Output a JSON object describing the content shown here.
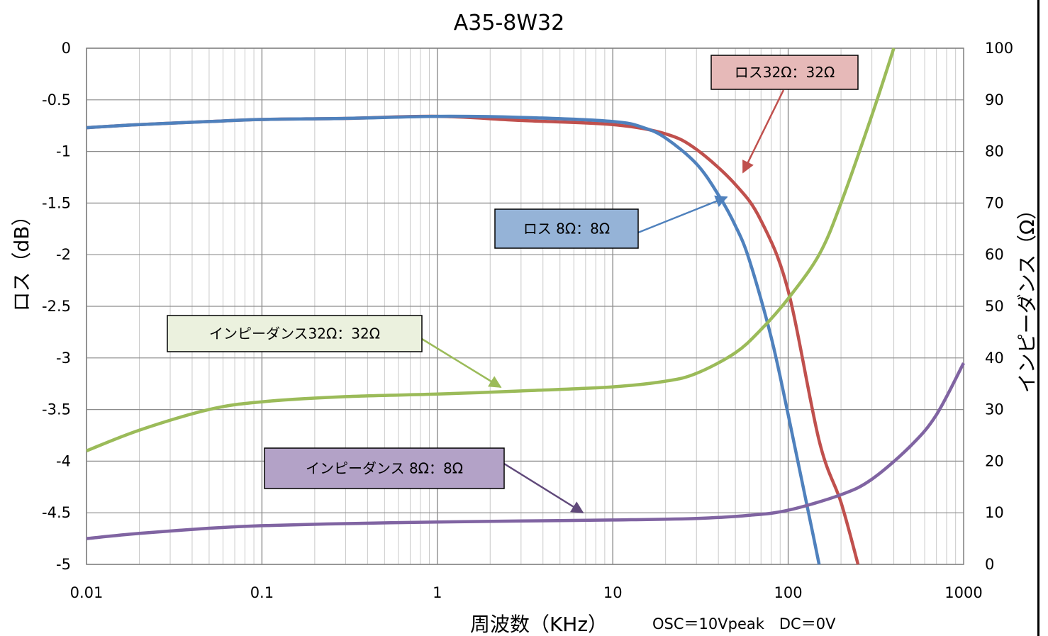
{
  "chart_data": {
    "type": "line",
    "title": "A35-8W32",
    "xlabel": "周波数（KHz）",
    "ylabel_left": "ロス（dB）",
    "ylabel_right": "インピーダンス（Ω）",
    "x_scale": "log",
    "xlim": [
      0.01,
      1000
    ],
    "ylim_left": [
      -5,
      0
    ],
    "ylim_right": [
      0,
      100
    ],
    "x_ticks": [
      "0.01",
      "0.1",
      "1",
      "10",
      "100",
      "1000"
    ],
    "y_left_ticks": [
      "0",
      "-0.5",
      "-1",
      "-1.5",
      "-2",
      "-2.5",
      "-3",
      "-3.5",
      "-4",
      "-4.5",
      "-5"
    ],
    "y_right_ticks": [
      "100",
      "90",
      "80",
      "70",
      "60",
      "50",
      "40",
      "30",
      "20",
      "10",
      "0"
    ],
    "grid": true,
    "note": "OSC＝10Vpeak　DC＝0V",
    "series": [
      {
        "name": "ロス32Ω：32Ω",
        "axis": "left",
        "color": "#c0504d",
        "x": [
          0.01,
          0.02,
          0.05,
          0.1,
          0.3,
          1,
          3,
          10,
          20,
          30,
          50,
          70,
          100,
          150,
          200,
          250
        ],
        "y": [
          -0.77,
          -0.74,
          -0.71,
          -0.69,
          -0.68,
          -0.66,
          -0.7,
          -0.74,
          -0.83,
          -0.98,
          -1.32,
          -1.67,
          -2.35,
          -3.8,
          -4.4,
          -5.0
        ]
      },
      {
        "name": "ロス 8Ω：8Ω",
        "axis": "left",
        "color": "#4f81bd",
        "x": [
          0.01,
          0.02,
          0.05,
          0.1,
          0.3,
          1,
          3,
          10,
          15,
          20,
          30,
          40,
          50,
          60,
          80,
          100,
          120,
          140,
          150
        ],
        "y": [
          -0.77,
          -0.74,
          -0.71,
          -0.69,
          -0.68,
          -0.66,
          -0.67,
          -0.71,
          -0.77,
          -0.87,
          -1.12,
          -1.42,
          -1.72,
          -2.05,
          -2.8,
          -3.55,
          -4.2,
          -4.75,
          -5.0
        ]
      },
      {
        "name": "インピーダンス32Ω：32Ω",
        "axis": "right",
        "color": "#9bbb59",
        "x": [
          0.01,
          0.02,
          0.05,
          0.1,
          0.3,
          1,
          3,
          10,
          20,
          30,
          50,
          70,
          100,
          150,
          200,
          300,
          400
        ],
        "y": [
          22,
          26,
          30,
          31.5,
          32.5,
          33,
          33.6,
          34.4,
          35.5,
          37,
          41,
          45.5,
          51.5,
          60,
          70,
          87,
          100
        ]
      },
      {
        "name": "インピーダンス 8Ω：8Ω",
        "axis": "right",
        "color": "#8064a2",
        "x": [
          0.01,
          0.02,
          0.05,
          0.1,
          0.3,
          1,
          3,
          10,
          30,
          60,
          100,
          200,
          300,
          500,
          700,
          1000
        ],
        "y": [
          5,
          6,
          7,
          7.5,
          7.9,
          8.2,
          8.4,
          8.6,
          8.9,
          9.5,
          10.5,
          13.5,
          16.5,
          23,
          29,
          39
        ]
      }
    ],
    "callouts": [
      {
        "label": "ロス32Ω：32Ω",
        "series": 0
      },
      {
        "label": "ロス 8Ω：8Ω",
        "series": 1
      },
      {
        "label": "インピーダンス32Ω：32Ω",
        "series": 2
      },
      {
        "label": "インピーダンス 8Ω：8Ω",
        "series": 3
      }
    ],
    "callout_colors": {
      "fill": [
        "#e6b9b8",
        "#95b3d7",
        "#ebf1de",
        "#b3a2c7"
      ],
      "arrow": [
        "#c0504d",
        "#4f81bd",
        "#9bbb59",
        "#60497a"
      ]
    }
  }
}
